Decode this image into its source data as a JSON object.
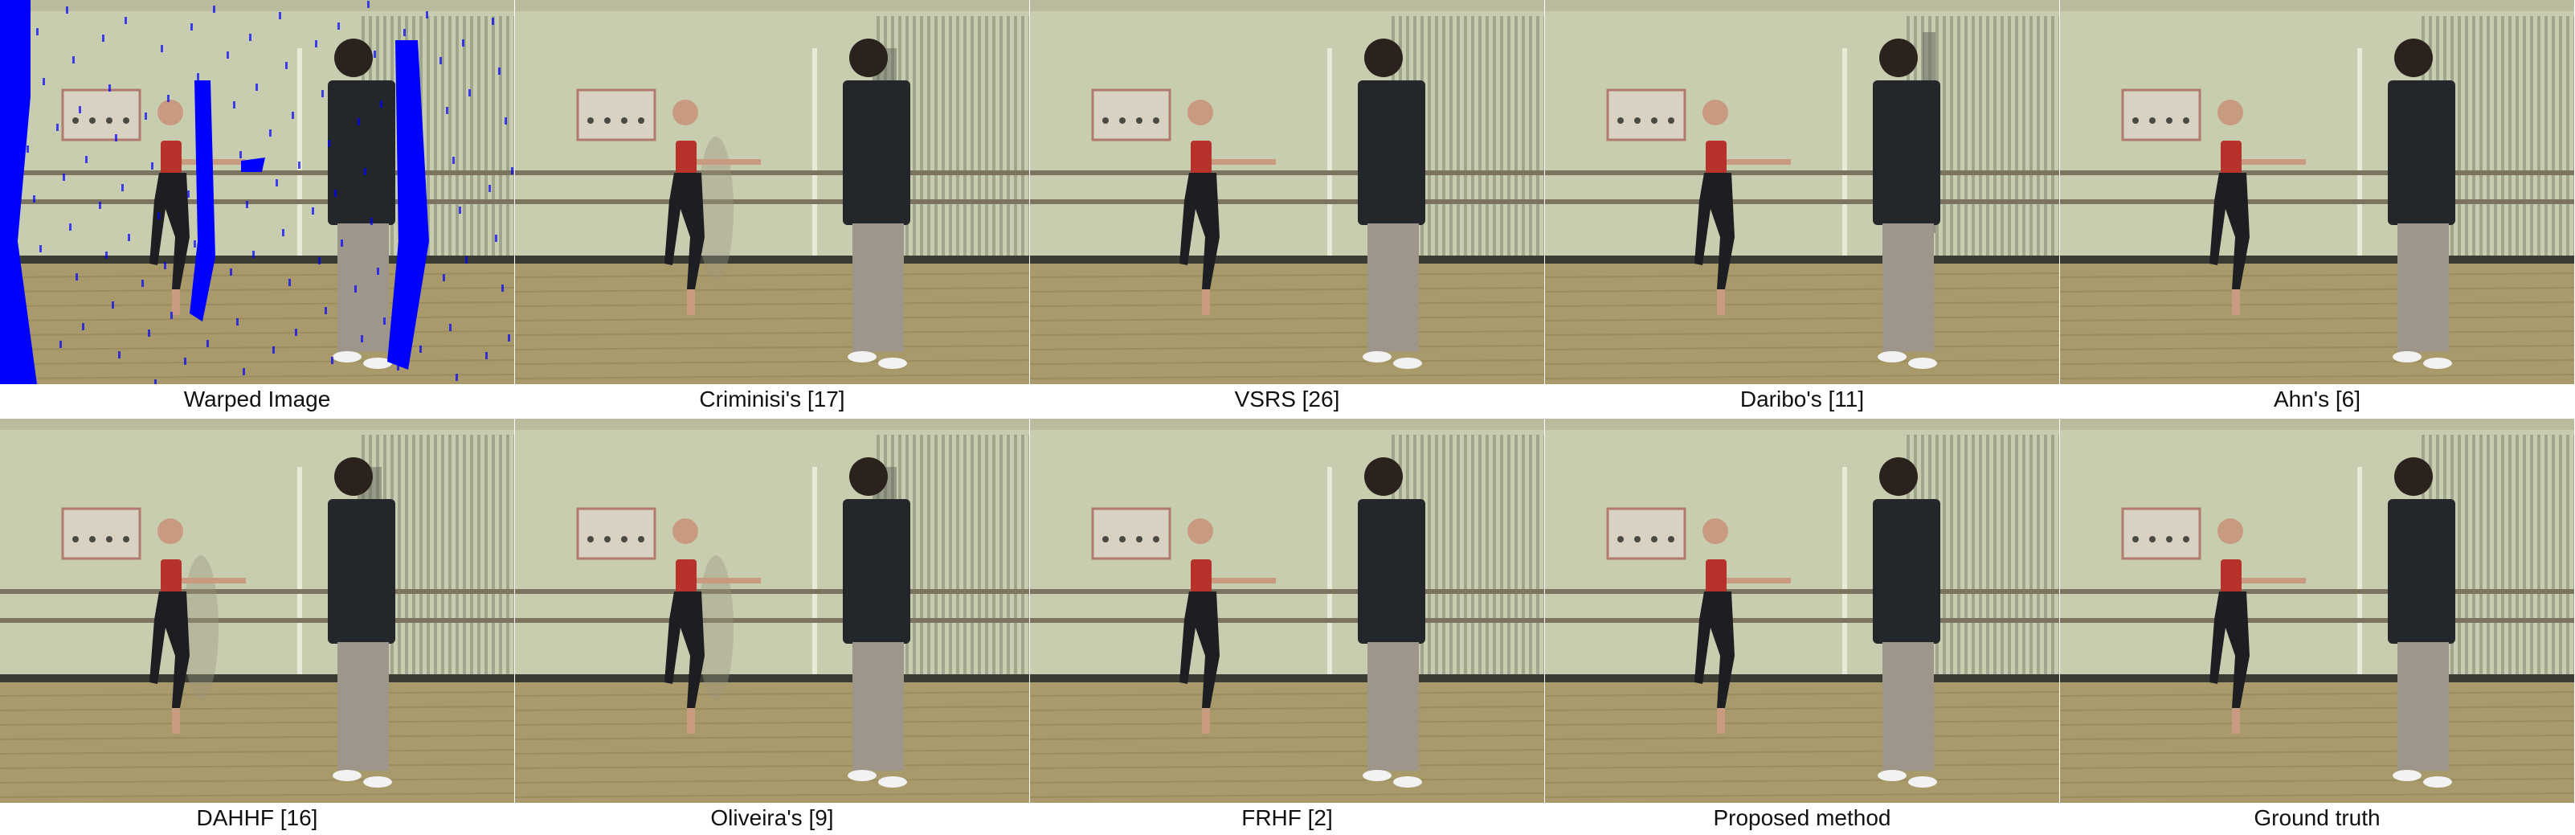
{
  "figure": {
    "panels": [
      {
        "caption": "Warped Image",
        "variant": "warped"
      },
      {
        "caption": "Criminisi's [17]",
        "variant": "ghost"
      },
      {
        "caption": "VSRS [26]",
        "variant": "clean"
      },
      {
        "caption": "Daribo's [11]",
        "variant": "artifact"
      },
      {
        "caption": "Ahn's [6]",
        "variant": "clean"
      },
      {
        "caption": "DAHHF [16]",
        "variant": "ghost"
      },
      {
        "caption": "Oliveira's [9]",
        "variant": "ghost"
      },
      {
        "caption": "FRHF [2]",
        "variant": "clean"
      },
      {
        "caption": "Proposed method",
        "variant": "clean"
      },
      {
        "caption": "Ground truth",
        "variant": "clean"
      }
    ],
    "colors": {
      "wall": "#c9cdb0",
      "floor": "#a89a6a",
      "hole": "#0000ff",
      "vest": "#23262b",
      "shirt": "#e6d46a",
      "pants": "#9e968a",
      "top": "#b8322c"
    }
  }
}
